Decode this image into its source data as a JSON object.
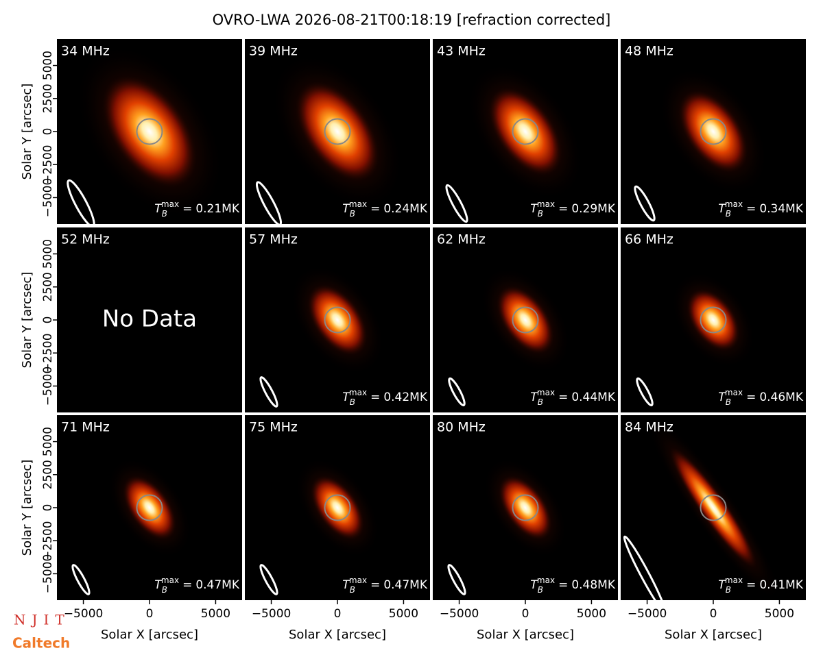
{
  "title": "OVRO-LWA 2026-08-21T00:18:19 [refraction corrected]",
  "axes": {
    "xlabel": "Solar X [arcsec]",
    "ylabel": "Solar Y [arcsec]",
    "xlim": [
      -7000,
      7000
    ],
    "ylim": [
      -7000,
      7000
    ],
    "xticks": [
      {
        "value": -5000,
        "label": "−5000"
      },
      0,
      5000
    ],
    "yticks": [
      {
        "value": -5000,
        "label": "−5000"
      },
      {
        "value": -2500,
        "label": "−2500"
      },
      0,
      2500,
      5000
    ]
  },
  "tb_symbol": {
    "base": "T",
    "sub": "B",
    "sup": "max",
    "eq": "="
  },
  "logos": [
    "NJIT",
    "Caltech"
  ],
  "chart_data": [
    {
      "type": "image",
      "title": "34 MHz",
      "tb_max": 0.21,
      "tb_max_label": "0.21MK"
    },
    {
      "type": "image",
      "title": "39 MHz",
      "tb_max": 0.24,
      "tb_max_label": "0.24MK"
    },
    {
      "type": "image",
      "title": "43 MHz",
      "tb_max": 0.29,
      "tb_max_label": "0.29MK"
    },
    {
      "type": "image",
      "title": "48 MHz",
      "tb_max": 0.34,
      "tb_max_label": "0.34MK"
    },
    {
      "type": "empty",
      "title": "52 MHz",
      "annotation": "No Data"
    },
    {
      "type": "image",
      "title": "57 MHz",
      "tb_max": 0.42,
      "tb_max_label": "0.42MK"
    },
    {
      "type": "image",
      "title": "62 MHz",
      "tb_max": 0.44,
      "tb_max_label": "0.44MK"
    },
    {
      "type": "image",
      "title": "66 MHz",
      "tb_max": 0.46,
      "tb_max_label": "0.46MK"
    },
    {
      "type": "image",
      "title": "71 MHz",
      "tb_max": 0.47,
      "tb_max_label": "0.47MK"
    },
    {
      "type": "image",
      "title": "75 MHz",
      "tb_max": 0.47,
      "tb_max_label": "0.47MK"
    },
    {
      "type": "image",
      "title": "80 MHz",
      "tb_max": 0.48,
      "tb_max_label": "0.48MK"
    },
    {
      "type": "image",
      "title": "84 MHz",
      "tb_max": 0.41,
      "tb_max_label": "0.41MK"
    }
  ]
}
